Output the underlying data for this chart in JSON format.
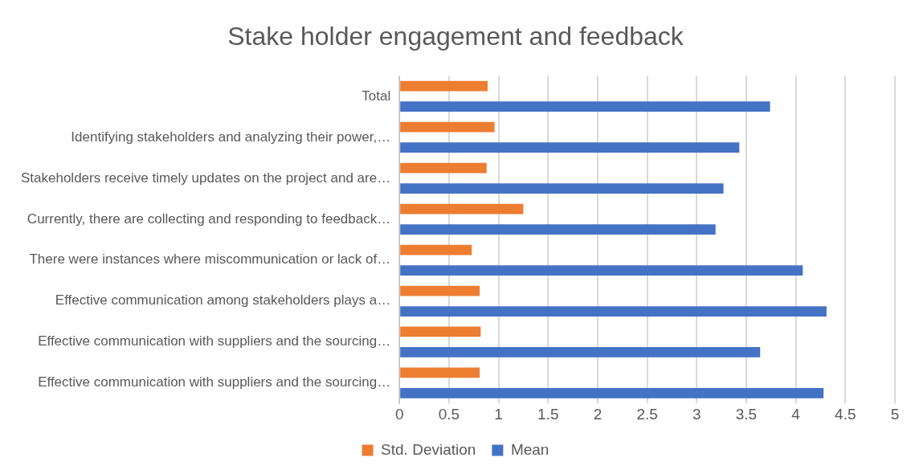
{
  "chart_data": {
    "type": "bar",
    "orientation": "horizontal",
    "title": "Stake holder engagement and feedback",
    "categories": [
      "Total",
      "Identifying stakeholders and analyzing their power,…",
      "Stakeholders receive timely updates on the project and are…",
      "Currently, there are collecting and responding to feedback…",
      "There were instances where miscommunication or lack of…",
      "Effective communication among stakeholders plays a…",
      "Effective communication with suppliers and the sourcing…",
      "Effective communication with suppliers and the sourcing…"
    ],
    "series": [
      {
        "name": "Std. Deviation",
        "color": "#ed7d31",
        "values": [
          0.89,
          0.96,
          0.88,
          1.25,
          0.73,
          0.81,
          0.82,
          0.81
        ]
      },
      {
        "name": "Mean",
        "color": "#4472c4",
        "values": [
          3.74,
          3.43,
          3.27,
          3.19,
          4.07,
          4.31,
          3.64,
          4.28
        ]
      }
    ],
    "xlim": [
      0,
      5
    ],
    "xticks": [
      0,
      0.5,
      1,
      1.5,
      2,
      2.5,
      3,
      3.5,
      4,
      4.5,
      5
    ],
    "grid": "x",
    "legend": "bottom"
  }
}
